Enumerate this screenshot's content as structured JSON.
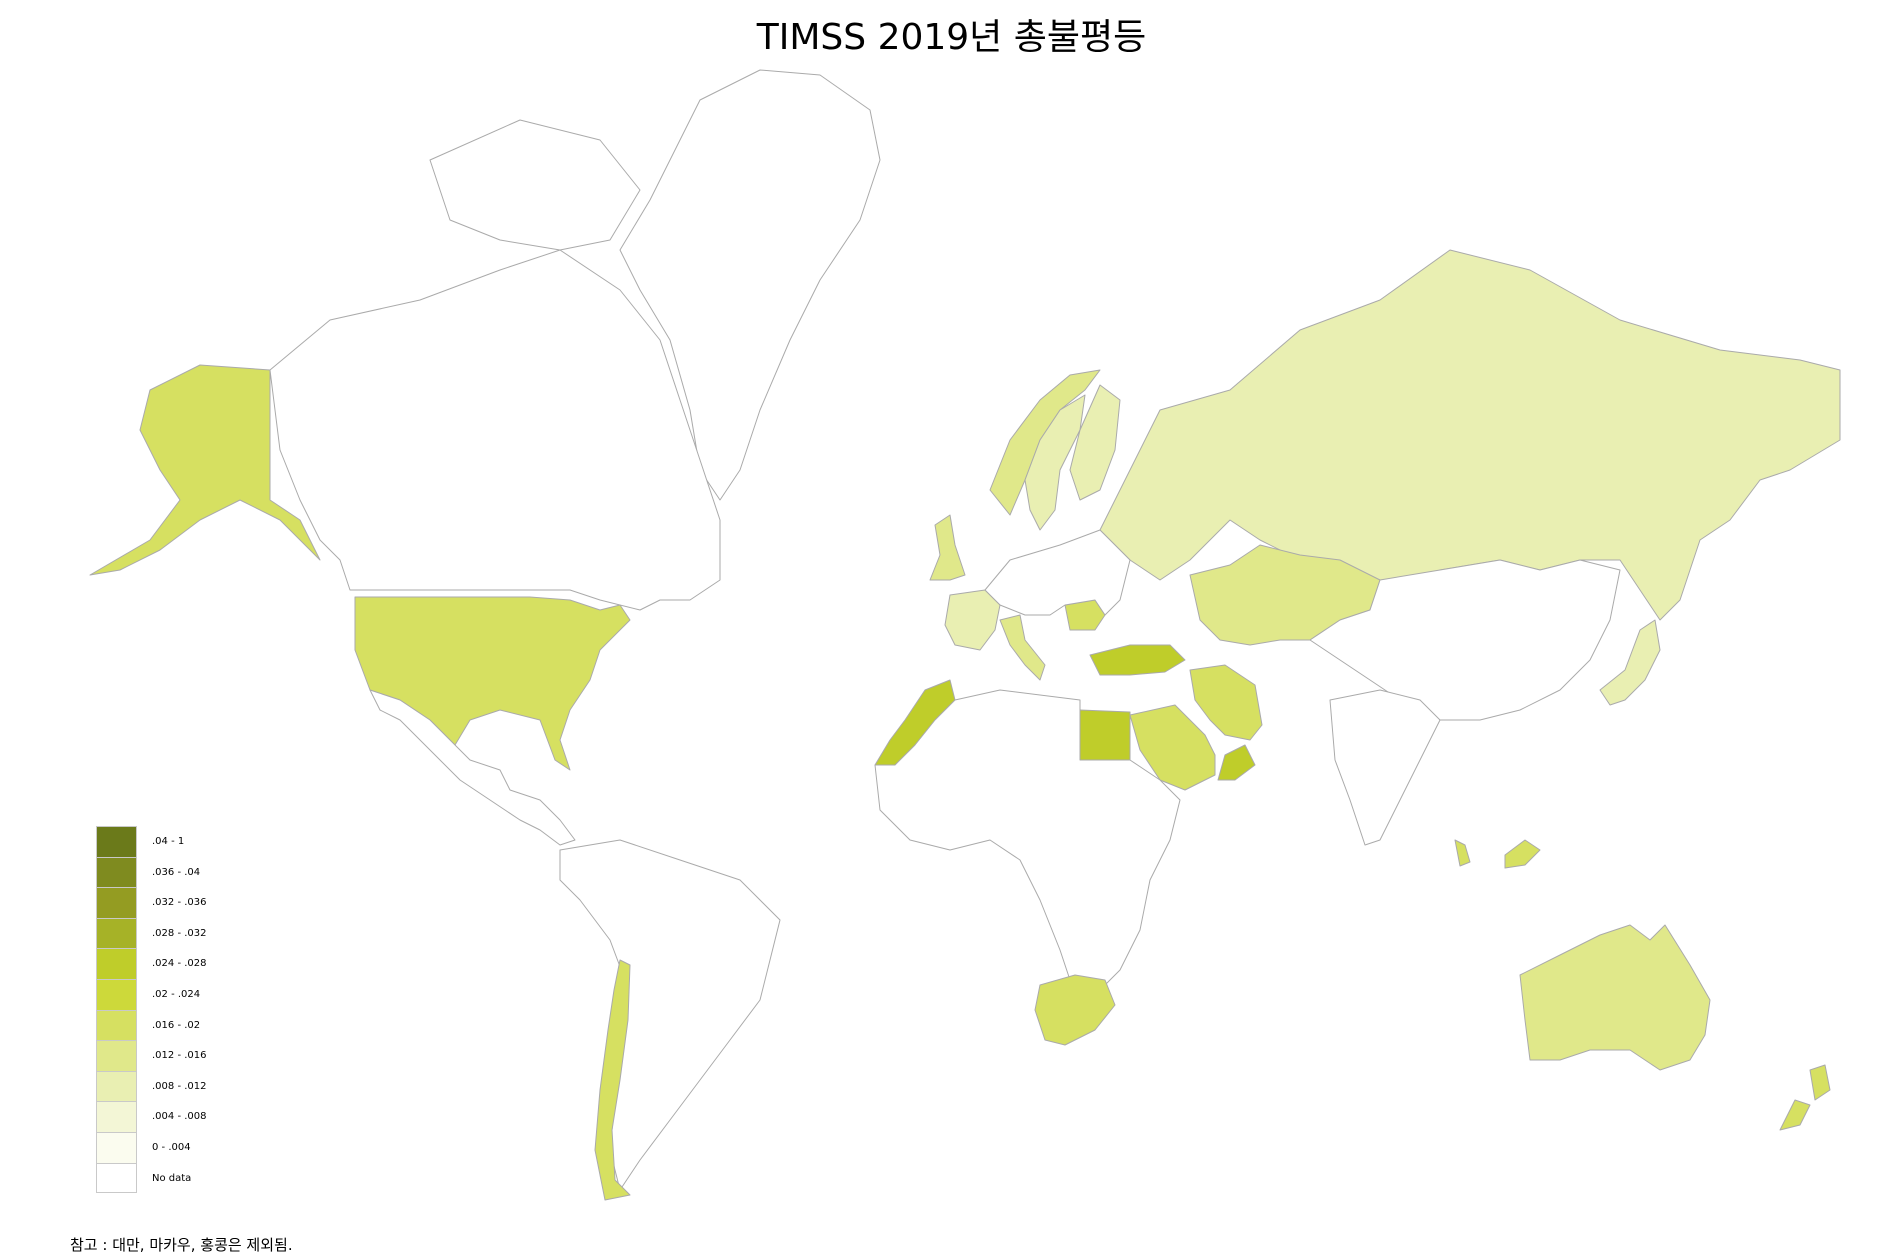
{
  "title": "TIMSS 2019년 총불평등",
  "legend": {
    "classes": [
      {
        "label": ".04 - 1",
        "color": "#6b7a1a"
      },
      {
        "label": ".036 - .04",
        "color": "#7f8b1f"
      },
      {
        "label": ".032 - .036",
        "color": "#949c22"
      },
      {
        "label": ".028 - .032",
        "color": "#a6b227"
      },
      {
        "label": ".024 - .028",
        "color": "#bfcd2a"
      },
      {
        "label": ".02 - .024",
        "color": "#cdd93a"
      },
      {
        "label": ".016 - .02",
        "color": "#d6e061"
      },
      {
        "label": ".012 - .016",
        "color": "#e0e88a"
      },
      {
        "label": ".008 - .012",
        "color": "#e9efb2"
      },
      {
        "label": ".004 - .008",
        "color": "#f3f6d6"
      },
      {
        "label": "0 - .004",
        "color": "#fbfcef"
      },
      {
        "label": "No data",
        "color": "#ffffff"
      }
    ]
  },
  "note": "참고 : 대만, 마카우, 홍콩은 제외됨.",
  "regions": [
    {
      "name": "Greenland",
      "class": "No data"
    },
    {
      "name": "Canada",
      "class": "No data"
    },
    {
      "name": "United States",
      "class": ".016 - .02"
    },
    {
      "name": "Alaska",
      "class": ".016 - .02"
    },
    {
      "name": "Mexico & Central America",
      "class": "No data"
    },
    {
      "name": "South America",
      "class": "No data"
    },
    {
      "name": "Chile",
      "class": ".016 - .02"
    },
    {
      "name": "Russia",
      "class": ".008 - .012"
    },
    {
      "name": "Kazakhstan",
      "class": ".012 - .016"
    },
    {
      "name": "Norway",
      "class": ".012 - .016"
    },
    {
      "name": "Sweden",
      "class": ".008 - .012"
    },
    {
      "name": "Finland",
      "class": ".008 - .012"
    },
    {
      "name": "United Kingdom",
      "class": ".012 - .016"
    },
    {
      "name": "France",
      "class": ".008 - .012"
    },
    {
      "name": "Italy",
      "class": ".012 - .016"
    },
    {
      "name": "Romania",
      "class": ".016 - .02"
    },
    {
      "name": "Turkey",
      "class": ".024 - .028"
    },
    {
      "name": "Iran",
      "class": ".016 - .02"
    },
    {
      "name": "Saudi Arabia",
      "class": ".016 - .02"
    },
    {
      "name": "Oman",
      "class": ".024 - .028"
    },
    {
      "name": "Egypt",
      "class": ".024 - .028"
    },
    {
      "name": "Morocco",
      "class": ".024 - .028"
    },
    {
      "name": "South Africa",
      "class": ".016 - .02"
    },
    {
      "name": "Japan",
      "class": ".008 - .012"
    },
    {
      "name": "Malaysia",
      "class": ".016 - .02"
    },
    {
      "name": "Australia",
      "class": ".012 - .016"
    },
    {
      "name": "New Zealand",
      "class": ".016 - .02"
    },
    {
      "name": "China",
      "class": "No data"
    },
    {
      "name": "India",
      "class": "No data"
    },
    {
      "name": "Africa (other)",
      "class": "No data"
    }
  ]
}
